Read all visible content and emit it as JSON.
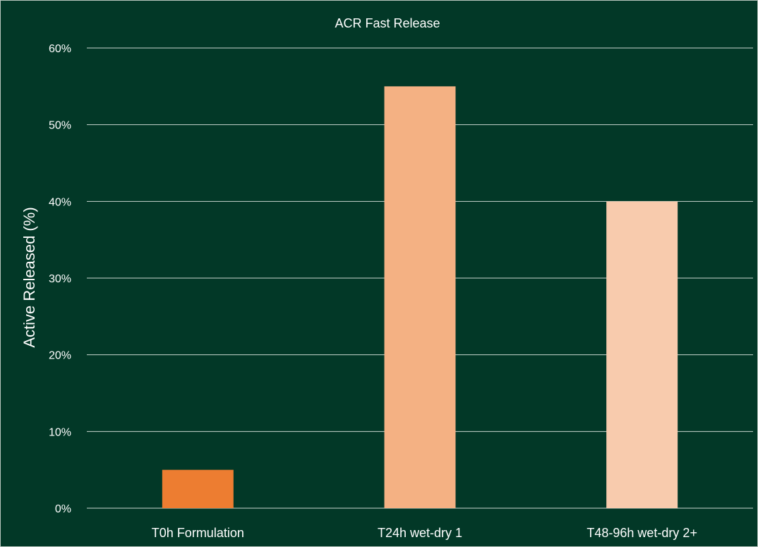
{
  "chart_data": {
    "type": "bar",
    "title": "ACR Fast Release",
    "xlabel": "",
    "ylabel": "Active Released (%)",
    "categories": [
      "T0h Formulation",
      "T24h wet-dry 1",
      "T48-96h wet-dry 2+"
    ],
    "values": [
      5,
      55,
      40
    ],
    "bar_colors": [
      "#ED7D31",
      "#F4B183",
      "#F8CBAD"
    ],
    "ylim": [
      0,
      60
    ],
    "yticks": [
      0,
      10,
      20,
      30,
      40,
      50,
      60
    ],
    "ytick_labels": [
      "0%",
      "10%",
      "20%",
      "30%",
      "40%",
      "50%",
      "60%"
    ],
    "grid": true,
    "legend": "none"
  },
  "colors": {
    "background": "#023827",
    "gridline": "#c9d6cf",
    "text": "#ffffff"
  }
}
